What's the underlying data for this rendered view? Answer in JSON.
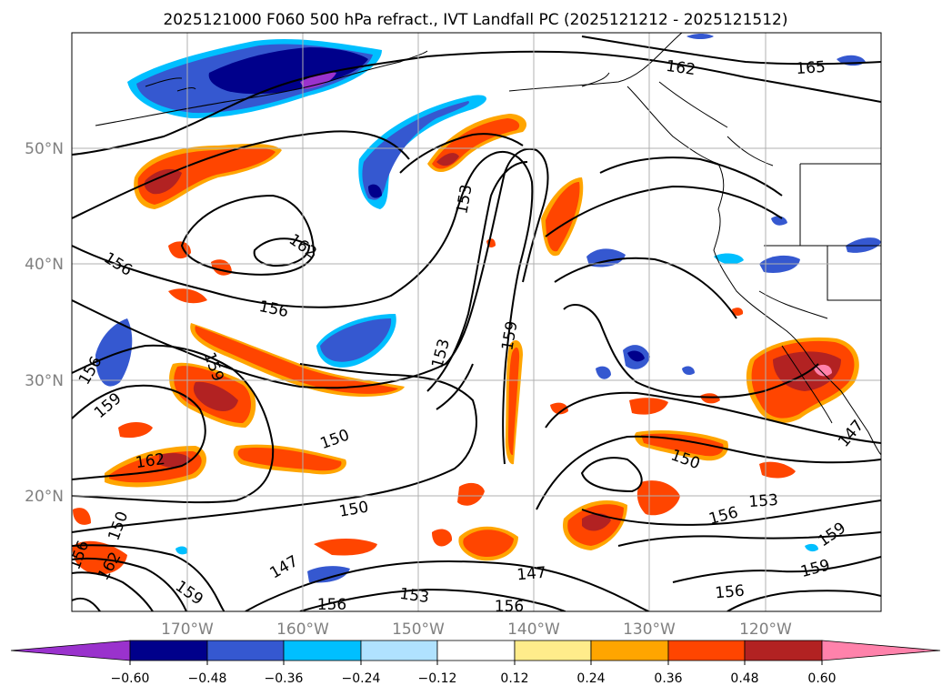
{
  "title": "2025121000 F060 500 hPa refract., IVT Landfall PC (2025121212 - 2025121512)",
  "map": {
    "lat_labels": [
      "50°N",
      "40°N",
      "30°N",
      "20°N"
    ],
    "lon_labels": [
      "170°W",
      "160°W",
      "150°W",
      "140°W",
      "130°W",
      "120°W"
    ],
    "label_color": "#808080"
  },
  "contour_labels": [
    "162",
    "165",
    "153",
    "162",
    "156",
    "156",
    "159",
    "153",
    "159",
    "156",
    "159",
    "162",
    "150",
    "150",
    "150",
    "153",
    "156",
    "159",
    "147",
    "147",
    "150",
    "156",
    "153",
    "156",
    "159",
    "156",
    "159",
    "147",
    "162",
    "156"
  ],
  "colorbar": {
    "ticks": [
      "−0.60",
      "−0.48",
      "−0.36",
      "−0.24",
      "−0.12",
      "0.12",
      "0.24",
      "0.36",
      "0.48",
      "0.60"
    ],
    "colors": [
      "#9a32cd",
      "#00008b",
      "#3558d0",
      "#00bfff",
      "#b0e2ff",
      "#ffffff",
      "#ffec8b",
      "#ffa500",
      "#ff4500",
      "#b22222",
      "#ff82ab"
    ]
  }
}
